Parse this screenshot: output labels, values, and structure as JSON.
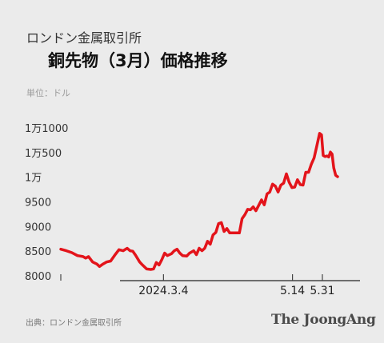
{
  "header": {
    "subtitle": "ロンドン金属取引所",
    "title": "銅先物（3月）価格推移",
    "unit": "単位：ドル"
  },
  "footer": {
    "source": "出典：ロンドン金属取引所",
    "brand": "The JoongAng"
  },
  "colors": {
    "line": "#e3141b",
    "background": "#ebebeb",
    "axis": "#444444"
  },
  "chart_data": {
    "type": "line",
    "title": "銅先物（3月）価格推移",
    "ylabel": "単位：ドル",
    "ylim": [
      8000,
      11000
    ],
    "y_ticks": [
      8000,
      8500,
      9000,
      9500,
      10000,
      10500,
      11000
    ],
    "y_tick_labels": [
      "8000",
      "8500",
      "9000",
      "9500",
      "1万",
      "1万500",
      "1万1000"
    ],
    "x_range": [
      0,
      100
    ],
    "x_ticks": [
      {
        "x": 37.1,
        "label": "2024.3.4"
      },
      {
        "x": 83.7,
        "label": "5.14"
      },
      {
        "x": 94.5,
        "label": "5.31"
      }
    ],
    "grid": false,
    "legend": "none",
    "series": [
      {
        "values": [
          [
            0,
            8540
          ],
          [
            2,
            8510
          ],
          [
            4,
            8470
          ],
          [
            6,
            8410
          ],
          [
            8,
            8390
          ],
          [
            9,
            8360
          ],
          [
            10,
            8390
          ],
          [
            11.5,
            8280
          ],
          [
            13,
            8240
          ],
          [
            14,
            8190
          ],
          [
            15,
            8230
          ],
          [
            16.5,
            8280
          ],
          [
            18,
            8300
          ],
          [
            19.5,
            8420
          ],
          [
            21,
            8530
          ],
          [
            22.5,
            8510
          ],
          [
            24,
            8560
          ],
          [
            25,
            8510
          ],
          [
            26,
            8500
          ],
          [
            27,
            8420
          ],
          [
            28.5,
            8280
          ],
          [
            29.5,
            8220
          ],
          [
            31,
            8140
          ],
          [
            32.5,
            8130
          ],
          [
            33.5,
            8140
          ],
          [
            34.5,
            8270
          ],
          [
            35.5,
            8220
          ],
          [
            36.5,
            8330
          ],
          [
            37.5,
            8460
          ],
          [
            38.5,
            8410
          ],
          [
            40,
            8450
          ],
          [
            41,
            8510
          ],
          [
            42,
            8540
          ],
          [
            43,
            8460
          ],
          [
            44,
            8410
          ],
          [
            45.5,
            8400
          ],
          [
            46.5,
            8460
          ],
          [
            48,
            8510
          ],
          [
            49,
            8430
          ],
          [
            50,
            8560
          ],
          [
            51,
            8510
          ],
          [
            52,
            8560
          ],
          [
            53,
            8700
          ],
          [
            54,
            8640
          ],
          [
            55,
            8830
          ],
          [
            56,
            8880
          ],
          [
            57,
            9060
          ],
          [
            58,
            9080
          ],
          [
            59,
            8900
          ],
          [
            60,
            8960
          ],
          [
            61,
            8870
          ],
          [
            62,
            8870
          ],
          [
            63.5,
            8870
          ],
          [
            64.5,
            8870
          ],
          [
            65.5,
            9160
          ],
          [
            66.5,
            9240
          ],
          [
            67.5,
            9350
          ],
          [
            68.5,
            9340
          ],
          [
            69.5,
            9400
          ],
          [
            70.5,
            9320
          ],
          [
            71.5,
            9430
          ],
          [
            72.5,
            9540
          ],
          [
            73.5,
            9440
          ],
          [
            74.5,
            9660
          ],
          [
            75.5,
            9700
          ],
          [
            76.5,
            9860
          ],
          [
            77.5,
            9820
          ],
          [
            78.5,
            9700
          ],
          [
            79.5,
            9840
          ],
          [
            80.5,
            9880
          ],
          [
            81.5,
            10070
          ],
          [
            82.5,
            9900
          ],
          [
            83.5,
            9790
          ],
          [
            84.5,
            9800
          ],
          [
            85.5,
            9950
          ],
          [
            86.5,
            9850
          ],
          [
            87.5,
            9840
          ],
          [
            88.5,
            10100
          ],
          [
            89.5,
            10100
          ],
          [
            90.5,
            10260
          ],
          [
            91.5,
            10390
          ],
          [
            92.5,
            10640
          ],
          [
            93.5,
            10890
          ],
          [
            94.2,
            10860
          ],
          [
            94.8,
            10440
          ],
          [
            95.5,
            10420
          ],
          [
            96.2,
            10430
          ],
          [
            96.8,
            10410
          ],
          [
            97.4,
            10510
          ],
          [
            98,
            10470
          ],
          [
            98.6,
            10190
          ],
          [
            99.3,
            10040
          ],
          [
            100,
            10010
          ]
        ]
      }
    ]
  }
}
